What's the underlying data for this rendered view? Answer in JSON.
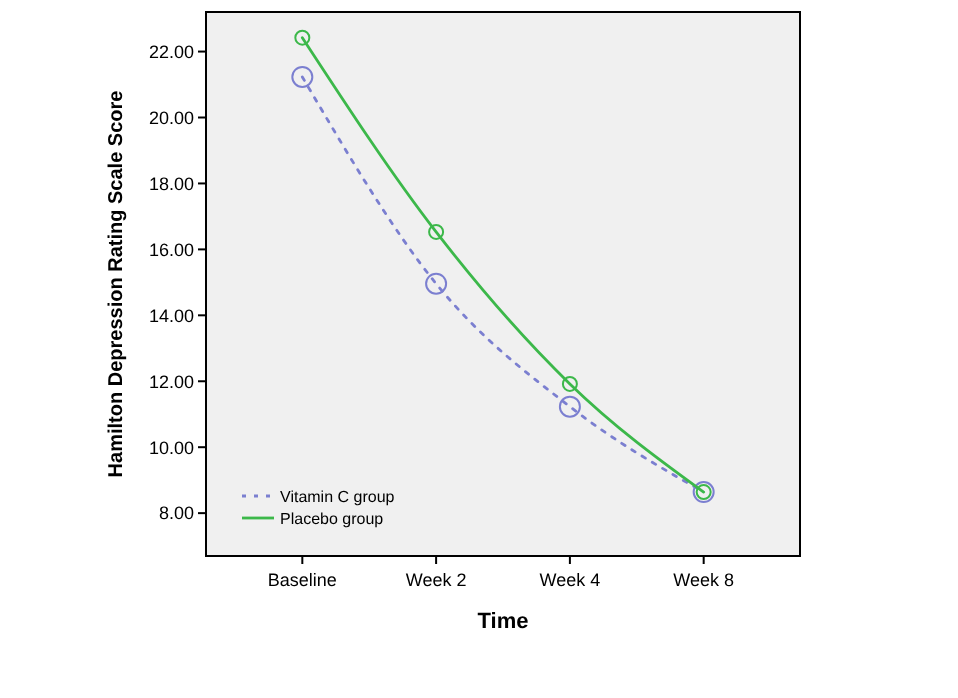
{
  "chart_data": {
    "type": "line",
    "xlabel": "Time",
    "ylabel": "Hamilton Depression Rating Scale Score",
    "categories": [
      "Baseline",
      "Week 2",
      "Week 4",
      "Week 8"
    ],
    "series": [
      {
        "name": "Vitamin C group",
        "color": "#7b7fd0",
        "values": [
          21.23,
          14.96,
          11.23,
          8.64
        ],
        "line_style": "dotted"
      },
      {
        "name": "Placebo group",
        "color": "#3cb84a",
        "values": [
          22.42,
          16.53,
          11.92,
          8.64
        ],
        "line_style": "solid"
      }
    ],
    "ylim": [
      6.7,
      23.2
    ],
    "yticks": [
      {
        "value": 8,
        "label": "8.00"
      },
      {
        "value": 10,
        "label": "10.00"
      },
      {
        "value": 12,
        "label": "12.00"
      },
      {
        "value": 14,
        "label": "14.00"
      },
      {
        "value": 16,
        "label": "16.00"
      },
      {
        "value": 18,
        "label": "18.00"
      },
      {
        "value": 20,
        "label": "20.00"
      },
      {
        "value": 22,
        "label": "22.00"
      }
    ],
    "marker": "circle",
    "grid": false,
    "legend": "bottom left"
  }
}
